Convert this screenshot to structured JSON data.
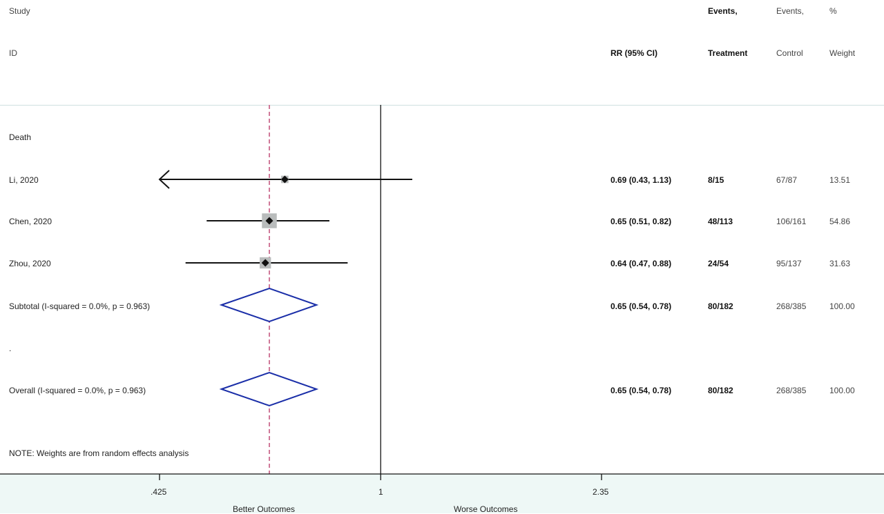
{
  "headers": {
    "study": "Study",
    "id": "ID",
    "rr": "RR (95% CI)",
    "events_t_1": "Events,",
    "events_t_2": "Treatment",
    "events_c_1": "Events,",
    "events_c_2": "Control",
    "weight_1": "%",
    "weight_2": "Weight"
  },
  "group_label": "Death",
  "rows": [
    {
      "label": "Li, 2020",
      "rr": "0.69 (0.43, 1.13)",
      "treat": "8/15",
      "control": "67/87",
      "weight": "13.51"
    },
    {
      "label": "Chen, 2020",
      "rr": "0.65 (0.51, 0.82)",
      "treat": "48/113",
      "control": "106/161",
      "weight": "54.86"
    },
    {
      "label": "Zhou, 2020",
      "rr": "0.64 (0.47, 0.88)",
      "treat": "24/54",
      "control": "95/137",
      "weight": "31.63"
    },
    {
      "label": "Subtotal  (I-squared = 0.0%, p = 0.963)",
      "rr": "0.65 (0.54, 0.78)",
      "treat": "80/182",
      "control": "268/385",
      "weight": "100.00"
    },
    {
      "label": ".",
      "rr": "",
      "treat": "",
      "control": "",
      "weight": ""
    },
    {
      "label": "Overall  (I-squared = 0.0%, p = 0.963)",
      "rr": "0.65 (0.54, 0.78)",
      "treat": "80/182",
      "control": "268/385",
      "weight": "100.00"
    }
  ],
  "note": "NOTE: Weights are from random effects analysis",
  "x_ticks": [
    ".425",
    "1",
    "2.35"
  ],
  "x_left_label": "Better Outcomes",
  "x_right_label": "Worse Outcomes",
  "colors": {
    "diamond": "#1a2ea8",
    "reference_dashed": "#d07898",
    "marker_box": "#b9bcbc",
    "line": "#111111"
  },
  "chart_data": {
    "type": "forest",
    "scale": "log",
    "xlim": [
      0.425,
      2.35
    ],
    "null_value": 1,
    "pooled_reference": 0.65,
    "studies": [
      {
        "name": "Li, 2020",
        "estimate": 0.69,
        "lower": 0.43,
        "upper": 1.13,
        "weight": 13.51,
        "arrow_left": true
      },
      {
        "name": "Chen, 2020",
        "estimate": 0.65,
        "lower": 0.51,
        "upper": 0.82,
        "weight": 54.86
      },
      {
        "name": "Zhou, 2020",
        "estimate": 0.64,
        "lower": 0.47,
        "upper": 0.88,
        "weight": 31.63
      }
    ],
    "subtotal": {
      "estimate": 0.65,
      "lower": 0.54,
      "upper": 0.78
    },
    "overall": {
      "estimate": 0.65,
      "lower": 0.54,
      "upper": 0.78
    }
  }
}
